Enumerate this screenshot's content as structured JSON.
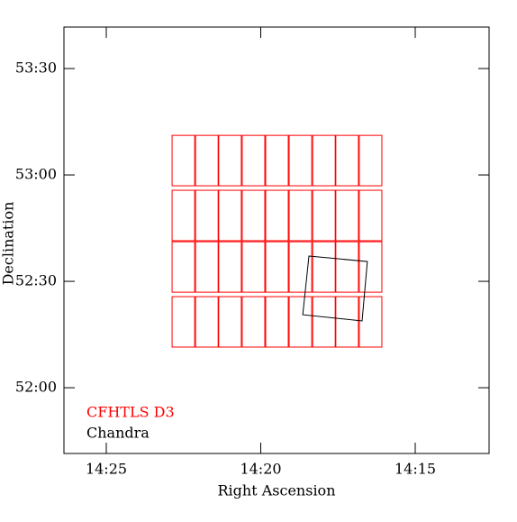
{
  "chart_data": {
    "type": "footprint",
    "x_label": "Right Ascension",
    "y_label": "Declination",
    "xlim": [
      26.37,
      12.61
    ],
    "xticks": [
      {
        "value": 25,
        "label": "14:25"
      },
      {
        "value": 20,
        "label": "14:20"
      },
      {
        "value": 15,
        "label": "14:15"
      }
    ],
    "ylim": [
      51.691,
      53.695
    ],
    "yticks": [
      {
        "value": 52,
        "label": "52:00"
      },
      {
        "value": 52.5,
        "label": "52:30"
      },
      {
        "value": 53,
        "label": "53:00"
      },
      {
        "value": 53.5,
        "label": "53:30"
      }
    ],
    "series": [
      {
        "name": "CFHTLS D3",
        "color": "#ff0000",
        "ra_edges": [
          [
            22.87,
            22.14
          ],
          [
            22.11,
            21.38
          ],
          [
            21.36,
            20.63
          ],
          [
            20.6,
            19.87
          ],
          [
            19.84,
            19.11
          ],
          [
            19.08,
            18.35
          ],
          [
            18.32,
            17.59
          ],
          [
            17.57,
            16.84
          ],
          [
            16.81,
            16.08
          ]
        ],
        "dec_edges": [
          [
            53.186,
            52.949
          ],
          [
            52.928,
            52.691
          ],
          [
            52.686,
            52.449
          ],
          [
            52.428,
            52.191
          ]
        ]
      },
      {
        "name": "Chandra",
        "color": "#000000",
        "x": [
          18.44,
          16.55,
          16.72,
          18.64
        ],
        "y": [
          52.619,
          52.593,
          52.314,
          52.343
        ]
      }
    ]
  }
}
